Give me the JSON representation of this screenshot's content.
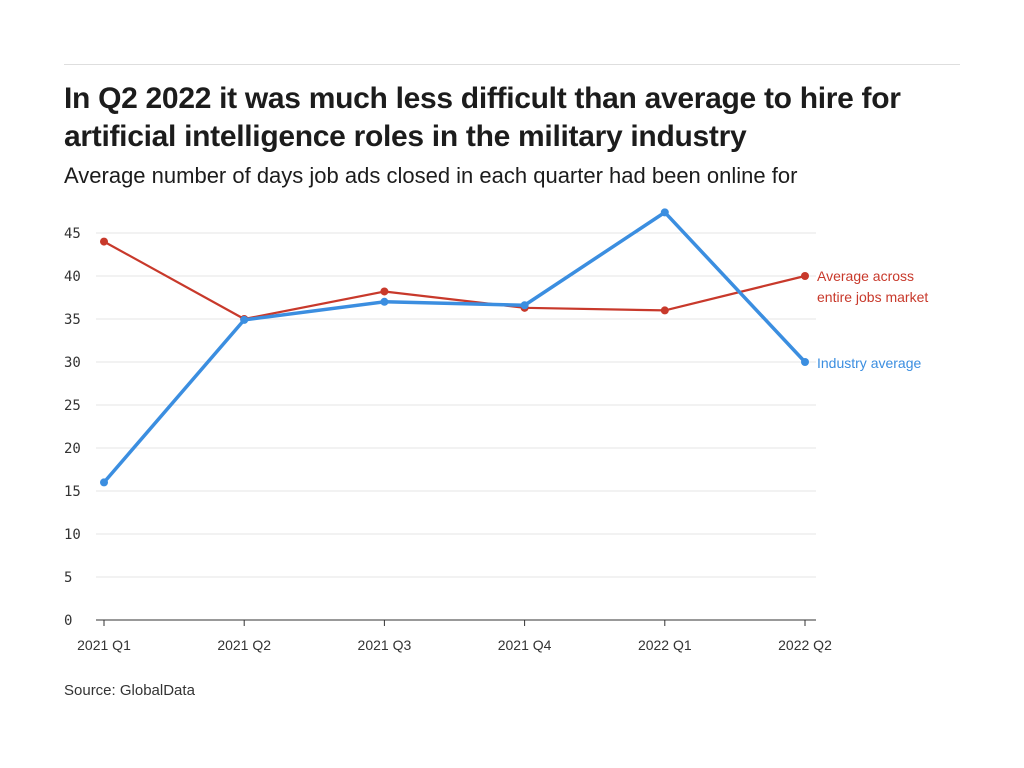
{
  "header": {
    "title": "In Q2 2022 it was much less difficult than average to hire for artificial intelligence roles in the military industry",
    "subtitle": "Average number of days job ads closed in each quarter had been online for"
  },
  "source": "Source: GlobalData",
  "chart_data": {
    "type": "line",
    "title": "In Q2 2022 it was much less difficult than average to hire for artificial intelligence roles in the military industry",
    "subtitle": "Average number of days job ads closed in each quarter had been online for",
    "xlabel": "",
    "ylabel": "",
    "categories": [
      "2021 Q1",
      "2021 Q2",
      "2021 Q3",
      "2021 Q4",
      "2022 Q1",
      "2022 Q2"
    ],
    "ylim": [
      0,
      45
    ],
    "yticks": [
      0,
      5,
      10,
      15,
      20,
      25,
      30,
      35,
      40,
      45
    ],
    "grid": true,
    "legend": "direct-labels-right",
    "series": [
      {
        "name": "Average across entire jobs market",
        "label_lines": [
          "Average across",
          "entire jobs market"
        ],
        "color": "#c8392b",
        "values": [
          44.0,
          35.0,
          38.2,
          36.3,
          36.0,
          40.0
        ]
      },
      {
        "name": "Industry average",
        "label_lines": [
          "Industry average"
        ],
        "color": "#3b8ee0",
        "values": [
          16.0,
          34.9,
          37.0,
          36.6,
          47.4,
          30.0
        ]
      }
    ]
  }
}
